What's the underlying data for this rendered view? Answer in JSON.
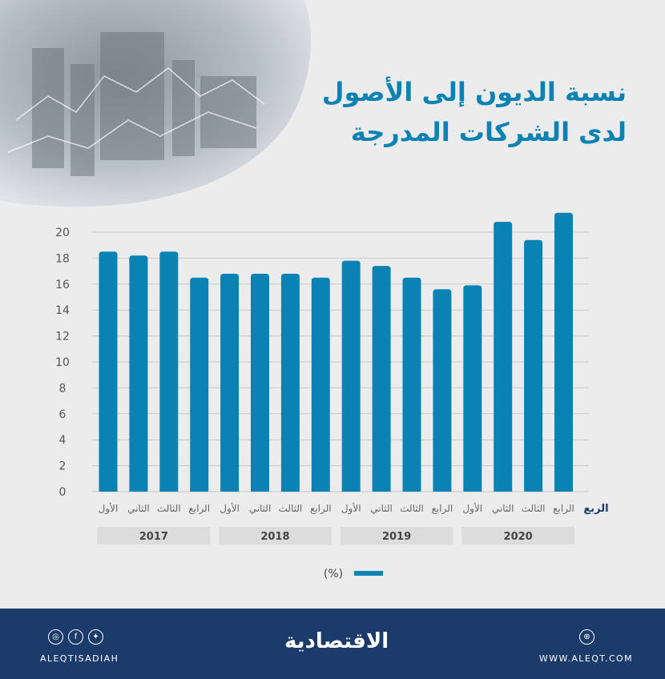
{
  "title": {
    "line1": "نسبة الديون إلى الأصول",
    "line2": "لدى الشركات المدرجة"
  },
  "chart_data": {
    "type": "bar",
    "x_axis_label": "الربع",
    "ylim": [
      0,
      22
    ],
    "yticks": [
      0,
      2,
      4,
      6,
      8,
      10,
      12,
      14,
      16,
      18,
      20
    ],
    "grid": true,
    "legend": {
      "label": "(%)",
      "position": "bottom-center"
    },
    "categories": [
      "الأول",
      "الثاني",
      "الثالث",
      "الرابع",
      "الأول",
      "الثاني",
      "الثالث",
      "الرابع",
      "الأول",
      "الثاني",
      "الثالث",
      "الرابع",
      "الأول",
      "الثاني",
      "الثالث",
      "الرابع"
    ],
    "years": [
      "2017",
      "2018",
      "2019",
      "2020"
    ],
    "values": [
      18.5,
      18.2,
      18.5,
      16.5,
      16.8,
      16.8,
      16.8,
      16.5,
      17.8,
      17.4,
      16.5,
      15.6,
      15.9,
      20.8,
      19.4,
      21.5
    ],
    "bar_color": "#0a82b4"
  },
  "footer": {
    "social_handle": "ALEQTISADIAH",
    "website": "WWW.ALEQT.COM",
    "logo_text": "الاقتصادية",
    "icons": [
      "instagram-icon",
      "facebook-icon",
      "twitter-icon",
      "globe-icon"
    ]
  }
}
